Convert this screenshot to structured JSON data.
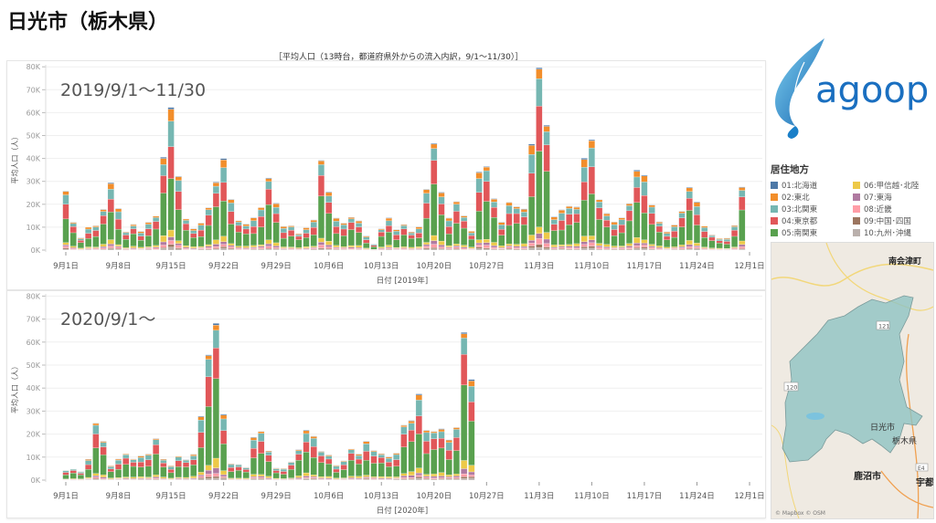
{
  "page": {
    "title": "日光市（栃木県）",
    "subtitle": "［平均人口（13時台，都道府県外からの流入内訳，9/1～11/30）］"
  },
  "legend": {
    "title": "居住地方",
    "items": [
      {
        "label": "01:北海道",
        "color": "#4e79a7"
      },
      {
        "label": "02:東北",
        "color": "#f28e2b"
      },
      {
        "label": "03:北関東",
        "color": "#76b7b2"
      },
      {
        "label": "04:東京都",
        "color": "#e15759"
      },
      {
        "label": "05:南関東",
        "color": "#59a14f"
      },
      {
        "label": "06:甲信越･北陸",
        "color": "#edc948"
      },
      {
        "label": "07:東海",
        "color": "#b07aa1"
      },
      {
        "label": "08:近畿",
        "color": "#ff9da7"
      },
      {
        "label": "09:中国･四国",
        "color": "#9c755f"
      },
      {
        "label": "10:九州･沖縄",
        "color": "#bab0ac"
      }
    ]
  },
  "logo": {
    "text": "agoop"
  },
  "map": {
    "labels": {
      "north": "南会津町",
      "city": "日光市",
      "pref": "栃木県",
      "south": "鹿沼市",
      "east": "宇都",
      "route121": "121",
      "route120": "120",
      "routeE4": "E4"
    },
    "attribution": "© Mapbox © OSM"
  },
  "chart_data": [
    {
      "type": "bar",
      "stacked": true,
      "period_label": "2019/9/1～11/30",
      "xlabel": "日付 [2019年]",
      "ylabel": "平均人口（人）",
      "ylim": [
        0,
        80000
      ],
      "y_ticks": [
        "0K",
        "10K",
        "20K",
        "30K",
        "40K",
        "50K",
        "60K",
        "70K",
        "80K"
      ],
      "x_ticks": [
        "9月1日",
        "9月8日",
        "9月15日",
        "9月22日",
        "9月29日",
        "10月6日",
        "10月13日",
        "10月20日",
        "10月27日",
        "11月3日",
        "11月10日",
        "11月17日",
        "11月24日",
        "12月1日"
      ],
      "start_date": "2019-09-01",
      "series_order": [
        "05:南関東",
        "04:東京都",
        "03:北関東",
        "02:東北",
        "01:北海道",
        "06:甲信越･北陸",
        "07:東海",
        "08:近畿",
        "09:中国･四国",
        "10:九州･沖縄"
      ],
      "approx_share": [
        0.43,
        0.22,
        0.14,
        0.06,
        0.01,
        0.05,
        0.03,
        0.03,
        0.015,
        0.015
      ],
      "daily_totals_k": [
        24,
        11,
        6,
        11,
        9.5,
        17,
        34,
        18.5,
        7,
        11.5,
        9.5,
        11.5,
        13.3,
        44.4,
        69,
        29,
        12.8,
        10.8,
        12.3,
        16.3,
        29.7,
        46.4,
        21.4,
        11.4,
        12.2,
        16,
        17,
        29,
        23.3,
        11,
        9.4,
        7,
        11.5,
        13,
        34.5,
        26.8,
        16,
        10.9,
        13,
        14.4,
        6.7,
        2.3,
        9,
        16.4,
        9,
        9.8,
        8.2,
        11.8,
        25,
        41.8,
        27.9,
        15.5,
        19,
        14.2,
        9.6,
        35,
        32,
        22.7,
        14.2,
        20,
        16.9,
        19.5,
        51.7,
        72,
        50.5,
        16.7,
        18.5,
        16.9,
        18.7,
        46.6,
        47,
        19.5,
        17.1,
        14,
        13,
        18.6,
        39.4,
        35,
        17.5,
        12,
        9.3,
        11,
        14.9,
        28.6,
        24.2,
        9.8,
        6,
        5.7,
        5.7,
        9.6,
        26.2
      ]
    },
    {
      "type": "bar",
      "stacked": true,
      "period_label": "2020/9/1～",
      "xlabel": "日付 [2020年]",
      "ylabel": "平均人口（人）",
      "ylim": [
        0,
        80000
      ],
      "y_ticks": [
        "0K",
        "10K",
        "20K",
        "30K",
        "40K",
        "50K",
        "60K",
        "70K",
        "80K"
      ],
      "x_ticks": [
        "9月1日",
        "9月8日",
        "9月15日",
        "9月22日",
        "9月29日",
        "10月6日",
        "10月13日",
        "10月20日",
        "10月27日",
        "11月3日",
        "11月10日",
        "11月17日",
        "11月24日",
        "12月1日"
      ],
      "start_date": "2020-09-01",
      "series_order": [
        "05:南関東",
        "04:東京都",
        "03:北関東",
        "02:東北",
        "01:北海道",
        "06:甲信越･北陸",
        "07:東海",
        "08:近畿",
        "09:中国･四国",
        "10:九州･沖縄"
      ],
      "approx_share": [
        0.45,
        0.22,
        0.15,
        0.04,
        0.01,
        0.05,
        0.03,
        0.02,
        0.015,
        0.015
      ],
      "daily_totals_k": [
        4,
        4.4,
        4.1,
        10,
        22,
        16.1,
        7.3,
        9.4,
        10,
        9.4,
        12.3,
        10.8,
        16.1,
        10,
        7,
        9.4,
        8.3,
        13,
        29,
        47.6,
        67.9,
        33.5,
        6.9,
        6,
        6,
        21.2,
        19.3,
        11.6,
        6,
        5.4,
        7,
        13,
        25.5,
        18.9,
        11,
        11.6,
        7.4,
        7.8,
        12.3,
        12.8,
        18.4,
        11.4,
        11,
        11.9,
        11.9,
        20.9,
        26.7,
        43.5,
        20.4,
        18.9,
        24.7,
        19.4,
        20.5,
        60.2,
        50.7
      ]
    }
  ]
}
